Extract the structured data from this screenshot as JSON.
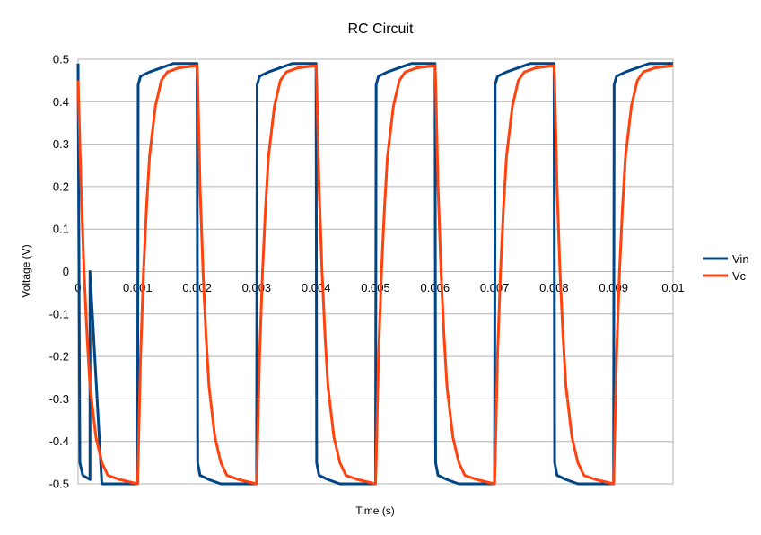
{
  "chart_data": {
    "type": "line",
    "title": "RC Circuit",
    "xlabel": "Time (s)",
    "ylabel": "Voltage (V)",
    "xlim": [
      0,
      0.01
    ],
    "ylim": [
      -0.5,
      0.5
    ],
    "x_ticks": [
      0,
      0.001,
      0.002,
      0.003,
      0.004,
      0.005,
      0.006,
      0.007,
      0.008,
      0.009,
      0.01
    ],
    "x_tick_labels": [
      "0",
      "0.001",
      "0.002",
      "0.003",
      "0.004",
      "0.005",
      "0.006",
      "0.007",
      "0.008",
      "0.009",
      "0.01"
    ],
    "y_ticks": [
      0.5,
      0.4,
      0.3,
      0.2,
      0.1,
      0,
      -0.1,
      -0.2,
      -0.3,
      -0.4,
      -0.5
    ],
    "y_tick_labels": [
      "0.5",
      "0.4",
      "0.3",
      "0.2",
      "0.1",
      "0",
      "-0.1",
      "-0.2",
      "-0.3",
      "-0.4",
      "-0.5"
    ],
    "grid": true,
    "legend_position": "right",
    "series": [
      {
        "name": "Vin",
        "color": "#004586",
        "points": [
          [
            0.0,
            0.49
          ],
          [
            3e-05,
            -0.45
          ],
          [
            8e-05,
            -0.48
          ],
          [
            0.0002,
            -0.49
          ],
          [
            0.0004,
            -0.5
          ],
          [
            0.001,
            -0.5
          ],
          [
            0.00101,
            0.44
          ],
          [
            0.00105,
            0.46
          ],
          [
            0.0002,
            0.0
          ],
          [
            0.0012,
            0.47
          ],
          [
            0.0014,
            0.48
          ],
          [
            0.0016,
            0.49
          ],
          [
            0.002,
            0.49
          ],
          [
            0.00201,
            -0.45
          ],
          [
            0.00205,
            -0.48
          ],
          [
            0.0022,
            -0.49
          ],
          [
            0.0024,
            -0.5
          ],
          [
            0.003,
            -0.5
          ],
          [
            0.00301,
            0.44
          ],
          [
            0.00305,
            0.46
          ],
          [
            0.0032,
            0.47
          ],
          [
            0.0034,
            0.48
          ],
          [
            0.0036,
            0.49
          ],
          [
            0.004,
            0.49
          ],
          [
            0.00401,
            -0.45
          ],
          [
            0.00405,
            -0.48
          ],
          [
            0.0042,
            -0.49
          ],
          [
            0.0044,
            -0.5
          ],
          [
            0.005,
            -0.5
          ],
          [
            0.00501,
            0.44
          ],
          [
            0.00505,
            0.46
          ],
          [
            0.0052,
            0.47
          ],
          [
            0.0054,
            0.48
          ],
          [
            0.0056,
            0.49
          ],
          [
            0.006,
            0.49
          ],
          [
            0.00601,
            -0.45
          ],
          [
            0.00605,
            -0.48
          ],
          [
            0.0062,
            -0.49
          ],
          [
            0.0064,
            -0.5
          ],
          [
            0.007,
            -0.5
          ],
          [
            0.00701,
            0.44
          ],
          [
            0.00705,
            0.46
          ],
          [
            0.0072,
            0.47
          ],
          [
            0.0074,
            0.48
          ],
          [
            0.0076,
            0.49
          ],
          [
            0.008,
            0.49
          ],
          [
            0.00801,
            -0.45
          ],
          [
            0.00805,
            -0.48
          ],
          [
            0.0082,
            -0.49
          ],
          [
            0.0084,
            -0.5
          ],
          [
            0.009,
            -0.5
          ],
          [
            0.00901,
            0.44
          ],
          [
            0.00905,
            0.46
          ],
          [
            0.0092,
            0.47
          ],
          [
            0.0094,
            0.48
          ],
          [
            0.0096,
            0.49
          ],
          [
            0.01,
            0.49
          ]
        ]
      },
      {
        "name": "Vc",
        "color": "#ff420e",
        "points": [
          [
            0.0,
            0.45
          ],
          [
            5e-05,
            0.2
          ],
          [
            0.0001,
            0.0
          ],
          [
            0.00015,
            -0.15
          ],
          [
            0.0002,
            -0.27
          ],
          [
            0.0003,
            -0.39
          ],
          [
            0.0004,
            -0.45
          ],
          [
            0.0005,
            -0.48
          ],
          [
            0.0007,
            -0.49
          ],
          [
            0.001,
            -0.5
          ],
          [
            0.00101,
            -0.45
          ],
          [
            0.00105,
            -0.2
          ],
          [
            0.0011,
            0.0
          ],
          [
            0.00115,
            0.15
          ],
          [
            0.0012,
            0.27
          ],
          [
            0.0013,
            0.39
          ],
          [
            0.0014,
            0.45
          ],
          [
            0.0015,
            0.47
          ],
          [
            0.0017,
            0.48
          ],
          [
            0.002,
            0.485
          ],
          [
            0.00201,
            0.45
          ],
          [
            0.00205,
            0.2
          ],
          [
            0.0021,
            0.0
          ],
          [
            0.00215,
            -0.15
          ],
          [
            0.0022,
            -0.27
          ],
          [
            0.0023,
            -0.39
          ],
          [
            0.0024,
            -0.45
          ],
          [
            0.0025,
            -0.48
          ],
          [
            0.0027,
            -0.49
          ],
          [
            0.003,
            -0.5
          ],
          [
            0.00301,
            -0.45
          ],
          [
            0.00305,
            -0.2
          ],
          [
            0.0031,
            0.0
          ],
          [
            0.00315,
            0.15
          ],
          [
            0.0032,
            0.27
          ],
          [
            0.0033,
            0.39
          ],
          [
            0.0034,
            0.45
          ],
          [
            0.0035,
            0.47
          ],
          [
            0.0037,
            0.48
          ],
          [
            0.004,
            0.485
          ],
          [
            0.00401,
            0.45
          ],
          [
            0.00405,
            0.2
          ],
          [
            0.0041,
            0.0
          ],
          [
            0.00415,
            -0.15
          ],
          [
            0.0042,
            -0.27
          ],
          [
            0.0043,
            -0.39
          ],
          [
            0.0044,
            -0.45
          ],
          [
            0.0045,
            -0.48
          ],
          [
            0.0047,
            -0.49
          ],
          [
            0.005,
            -0.5
          ],
          [
            0.00501,
            -0.45
          ],
          [
            0.00505,
            -0.2
          ],
          [
            0.0051,
            0.0
          ],
          [
            0.00515,
            0.15
          ],
          [
            0.0052,
            0.27
          ],
          [
            0.0053,
            0.39
          ],
          [
            0.0054,
            0.45
          ],
          [
            0.0055,
            0.47
          ],
          [
            0.0057,
            0.48
          ],
          [
            0.006,
            0.485
          ],
          [
            0.00601,
            0.45
          ],
          [
            0.00605,
            0.2
          ],
          [
            0.0061,
            0.0
          ],
          [
            0.00615,
            -0.15
          ],
          [
            0.0062,
            -0.27
          ],
          [
            0.0063,
            -0.39
          ],
          [
            0.0064,
            -0.45
          ],
          [
            0.0065,
            -0.48
          ],
          [
            0.0067,
            -0.49
          ],
          [
            0.007,
            -0.5
          ],
          [
            0.00701,
            -0.45
          ],
          [
            0.00705,
            -0.2
          ],
          [
            0.0071,
            0.0
          ],
          [
            0.00715,
            0.15
          ],
          [
            0.0072,
            0.27
          ],
          [
            0.0073,
            0.39
          ],
          [
            0.0074,
            0.45
          ],
          [
            0.0075,
            0.47
          ],
          [
            0.0077,
            0.48
          ],
          [
            0.008,
            0.485
          ],
          [
            0.00801,
            0.45
          ],
          [
            0.00805,
            0.2
          ],
          [
            0.0081,
            0.0
          ],
          [
            0.00815,
            -0.15
          ],
          [
            0.0082,
            -0.27
          ],
          [
            0.0083,
            -0.39
          ],
          [
            0.0084,
            -0.45
          ],
          [
            0.0085,
            -0.48
          ],
          [
            0.0087,
            -0.49
          ],
          [
            0.009,
            -0.5
          ],
          [
            0.00901,
            -0.45
          ],
          [
            0.00905,
            -0.2
          ],
          [
            0.0091,
            0.0
          ],
          [
            0.00915,
            0.15
          ],
          [
            0.0092,
            0.27
          ],
          [
            0.0093,
            0.39
          ],
          [
            0.0094,
            0.45
          ],
          [
            0.0095,
            0.47
          ],
          [
            0.0097,
            0.48
          ],
          [
            0.01,
            0.485
          ]
        ]
      }
    ]
  }
}
